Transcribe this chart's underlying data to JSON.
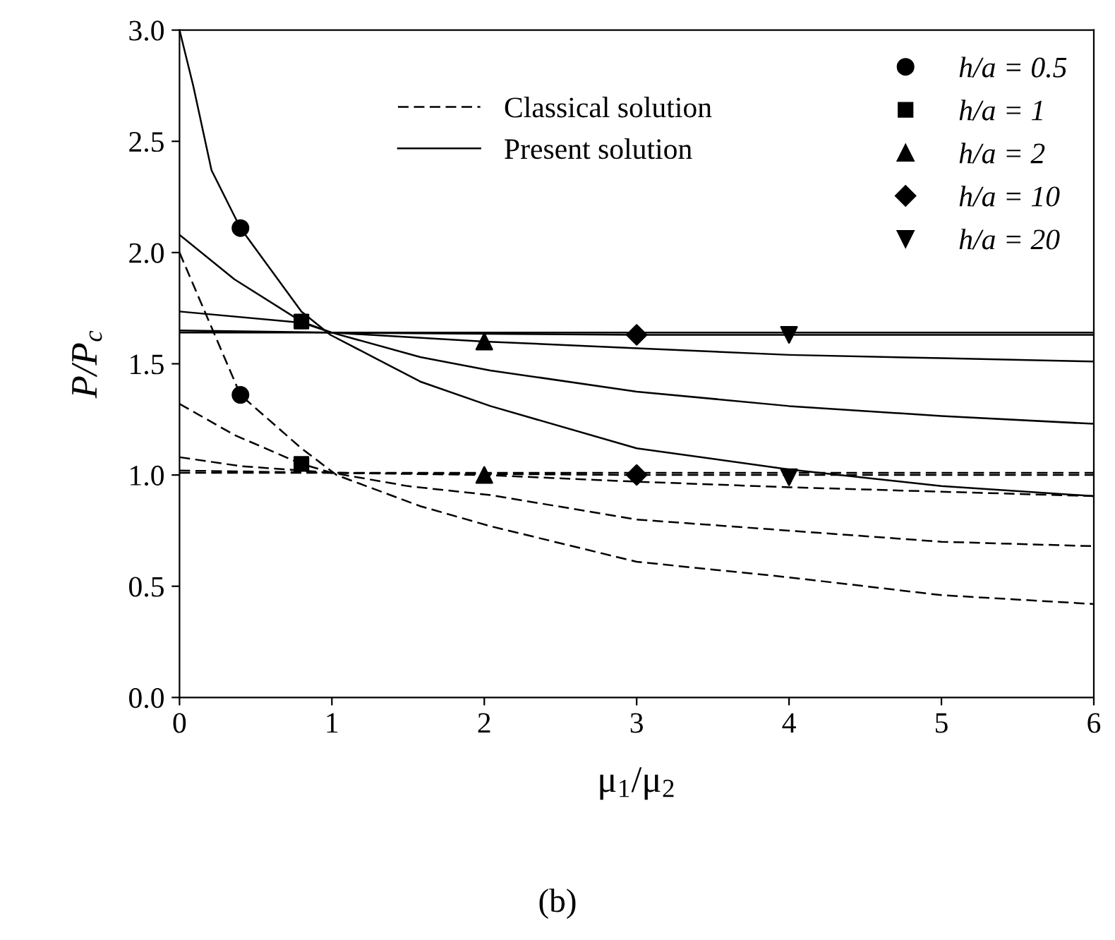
{
  "chart_data": {
    "type": "line",
    "xlabel": "μ$_{1}$/μ$_{2}$",
    "ylabel": "P/P$_{c}$",
    "xlim": [
      0,
      6
    ],
    "ylim": [
      0,
      3
    ],
    "xticks": [
      0,
      1,
      2,
      3,
      4,
      5,
      6
    ],
    "yticks": [
      {
        "value": 0,
        "label": "0.0"
      },
      {
        "value": 0.5,
        "label": "0.5"
      },
      {
        "value": 1,
        "label": "1.0"
      },
      {
        "value": 1.5,
        "label": "1.5"
      },
      {
        "value": 2,
        "label": "2.0"
      },
      {
        "value": 2.5,
        "label": "2.5"
      },
      {
        "value": 3,
        "label": "3.0"
      }
    ],
    "grid": false,
    "legend": "top right",
    "annotations": [
      "(b)"
    ],
    "series": [
      {
        "line_style": "dashed",
        "name": "Classical solution",
        "color": "#000000",
        "x": [
          0,
          0.15,
          0.4,
          0.8,
          1.03,
          1.58,
          2.04,
          3,
          4,
          5,
          6
        ],
        "values": [
          2.0,
          1.76,
          1.36,
          1.12,
          1.0,
          0.86,
          0.77,
          0.61,
          0.54,
          0.46,
          0.42
        ]
      },
      {
        "type": "line",
        "line_style": "dashed",
        "color": "#000000",
        "x": [
          0,
          0.36,
          0.8,
          1,
          1.5,
          2.04,
          3,
          4,
          5,
          6
        ],
        "values": [
          1.32,
          1.18,
          1.05,
          1.01,
          0.95,
          0.91,
          0.8,
          0.75,
          0.7,
          0.68
        ]
      },
      {
        "type": "line",
        "line_style": "dashed",
        "color": "#000000",
        "x": [
          0,
          0.4,
          1,
          2,
          3,
          4,
          5,
          6
        ],
        "values": [
          1.08,
          1.04,
          1.01,
          1.0,
          0.97,
          0.945,
          0.925,
          0.905
        ]
      },
      {
        "type": "line",
        "line_style": "dashed",
        "color": "#000000",
        "x": [
          0,
          1,
          3,
          6
        ],
        "values": [
          1.02,
          1.01,
          1.0,
          1.0
        ]
      },
      {
        "type": "line",
        "line_style": "dashed",
        "color": "#000000",
        "x": [
          0,
          6
        ],
        "values": [
          1.01,
          1.01
        ]
      },
      {
        "line_style": "solid",
        "name": "Present solution",
        "color": "#000000",
        "x": [
          0,
          0.09,
          0.21,
          0.4,
          0.8,
          0.99,
          1.58,
          2.04,
          3,
          4,
          5,
          6
        ],
        "values": [
          3.0,
          2.75,
          2.37,
          2.11,
          1.735,
          1.63,
          1.42,
          1.31,
          1.12,
          1.025,
          0.95,
          0.905
        ]
      },
      {
        "type": "line",
        "line_style": "solid",
        "color": "#000000",
        "x": [
          0,
          0.36,
          0.8,
          1,
          1.58,
          2.04,
          3,
          4,
          5,
          6
        ],
        "values": [
          2.08,
          1.88,
          1.69,
          1.64,
          1.53,
          1.47,
          1.375,
          1.31,
          1.265,
          1.23
        ]
      },
      {
        "type": "line",
        "line_style": "solid",
        "color": "#000000",
        "x": [
          0,
          0.8,
          1,
          2,
          3,
          4,
          5,
          6
        ],
        "values": [
          1.735,
          1.685,
          1.64,
          1.6,
          1.57,
          1.54,
          1.525,
          1.51
        ]
      },
      {
        "type": "line",
        "line_style": "solid",
        "color": "#000000",
        "x": [
          0,
          1,
          3,
          6
        ],
        "values": [
          1.65,
          1.64,
          1.63,
          1.63
        ]
      },
      {
        "type": "line",
        "line_style": "solid",
        "color": "#000000",
        "x": [
          0,
          6
        ],
        "values": [
          1.64,
          1.64
        ]
      },
      {
        "type": "scatter",
        "marker": "circle",
        "name": "h/a = 0.5",
        "color": "#000000",
        "x": [
          0.4,
          0.4
        ],
        "values": [
          2.11,
          1.36
        ]
      },
      {
        "type": "scatter",
        "marker": "square",
        "name": "h/a = 1",
        "color": "#000000",
        "x": [
          0.8,
          0.8
        ],
        "values": [
          1.69,
          1.05
        ]
      },
      {
        "type": "scatter",
        "marker": "triangle",
        "name": "h/a = 2",
        "color": "#000000",
        "x": [
          2,
          2
        ],
        "values": [
          1.6,
          1.0
        ]
      },
      {
        "type": "scatter",
        "marker": "diamond",
        "name": "h/a = 10",
        "color": "#000000",
        "x": [
          3,
          3
        ],
        "values": [
          1.63,
          1.0
        ]
      },
      {
        "type": "scatter",
        "marker": "triangle_down",
        "name": "h/a = 20",
        "color": "#000000",
        "x": [
          4,
          4
        ],
        "values": [
          1.63,
          0.99
        ]
      }
    ]
  }
}
